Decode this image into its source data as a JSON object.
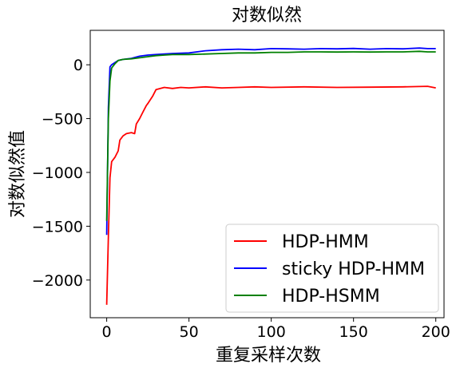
{
  "chart_data": {
    "type": "line",
    "title": "对数似然",
    "xlabel": "重复采样次数",
    "ylabel": "对数似然值",
    "xlim": [
      -10,
      205
    ],
    "ylim": [
      -2350,
      320
    ],
    "xticks": [
      0,
      50,
      100,
      150,
      200
    ],
    "xtick_labels": [
      "0",
      "50",
      "100",
      "150",
      "200"
    ],
    "yticks": [
      0,
      -500,
      -1000,
      -1500,
      -2000
    ],
    "ytick_labels": [
      "0",
      "−500",
      "−1000",
      "−1500",
      "−2000"
    ],
    "grid": false,
    "legend_position": "bottom-right",
    "series": [
      {
        "name": "HDP-HMM",
        "color": "#ff0000",
        "x": [
          0,
          1,
          2,
          3,
          5,
          7,
          8,
          10,
          12,
          15,
          17,
          18,
          20,
          22,
          24,
          25,
          28,
          30,
          35,
          40,
          45,
          50,
          60,
          70,
          80,
          90,
          100,
          120,
          140,
          160,
          180,
          195,
          200
        ],
        "y": [
          -2230,
          -1600,
          -1050,
          -900,
          -860,
          -800,
          -700,
          -660,
          -640,
          -630,
          -640,
          -550,
          -500,
          -440,
          -380,
          -360,
          -290,
          -230,
          -210,
          -220,
          -210,
          -215,
          -205,
          -215,
          -210,
          -205,
          -210,
          -205,
          -210,
          -208,
          -205,
          -200,
          -215
        ]
      },
      {
        "name": "sticky HDP-HMM",
        "color": "#0000ff",
        "x": [
          0,
          1,
          2,
          3,
          5,
          7,
          10,
          15,
          20,
          25,
          30,
          35,
          40,
          50,
          60,
          70,
          80,
          90,
          100,
          110,
          120,
          130,
          140,
          150,
          160,
          170,
          180,
          190,
          195,
          200
        ],
        "y": [
          -1580,
          -400,
          -20,
          0,
          20,
          40,
          50,
          60,
          80,
          90,
          95,
          100,
          105,
          110,
          130,
          140,
          145,
          140,
          150,
          148,
          145,
          150,
          148,
          152,
          145,
          150,
          148,
          155,
          150,
          150
        ]
      },
      {
        "name": "HDP-HSMM",
        "color": "#008000",
        "x": [
          0,
          1,
          2,
          3,
          5,
          7,
          10,
          15,
          20,
          25,
          30,
          35,
          40,
          50,
          60,
          70,
          80,
          90,
          100,
          110,
          120,
          130,
          140,
          150,
          160,
          170,
          180,
          190,
          195,
          200
        ],
        "y": [
          -1450,
          -500,
          -150,
          -30,
          10,
          40,
          50,
          55,
          65,
          75,
          85,
          90,
          95,
          95,
          100,
          105,
          110,
          110,
          115,
          115,
          120,
          120,
          118,
          120,
          118,
          120,
          120,
          125,
          120,
          120
        ]
      }
    ]
  }
}
